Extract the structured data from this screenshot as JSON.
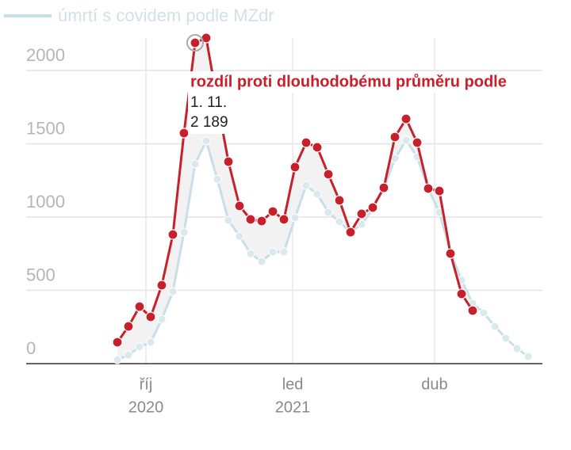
{
  "chart_data": {
    "type": "line",
    "categories": [
      null,
      null,
      null,
      null,
      null,
      null,
      null,
      null,
      null,
      null,
      null,
      null,
      null,
      null,
      null,
      null,
      null,
      null,
      null,
      null,
      null,
      null,
      null,
      null,
      null,
      null,
      null,
      null,
      null,
      null,
      null,
      null,
      null,
      null,
      null,
      null,
      null,
      null
    ],
    "series": [
      {
        "name": "úmrtí s covidem podle MZdr",
        "color": "#c9dfe6",
        "values": [
          27,
          59,
          114,
          146,
          303,
          492,
          897,
          1362,
          1519,
          1259,
          978,
          870,
          751,
          697,
          762,
          762,
          995,
          1216,
          1157,
          1032,
          968,
          897,
          951,
          1054,
          1195,
          1400,
          1524,
          1411,
          1195,
          1032,
          762,
          568,
          411,
          346,
          254,
          173,
          103,
          49
        ]
      },
      {
        "name": "rozdíl proti dlouhodobému průměru podle",
        "color": "#c8202a",
        "values": [
          146,
          254,
          389,
          319,
          535,
          881,
          1573,
          2189,
          2222,
          1789,
          1378,
          1076,
          984,
          973,
          1038,
          984,
          1341,
          1508,
          1476,
          1292,
          1114,
          897,
          1022,
          1065,
          1200,
          1546,
          1670,
          1508,
          1195,
          1178,
          751,
          476,
          362,
          null,
          null,
          null,
          null,
          null
        ]
      }
    ],
    "ylim": [
      0,
      2000
    ],
    "yticks": [
      0,
      500,
      1000,
      1500,
      2000
    ],
    "xticks": [
      {
        "value": 2.57,
        "label": "říj",
        "sublabel": "2020"
      },
      {
        "value": 15.79,
        "label": "led",
        "sublabel": "2021"
      },
      {
        "value": 28.57,
        "label": "dub"
      }
    ],
    "grid": true,
    "legend": "top-left",
    "tooltip": {
      "index": 7,
      "date": "1. 11.",
      "value": 2189,
      "value_label": "2 189"
    }
  }
}
